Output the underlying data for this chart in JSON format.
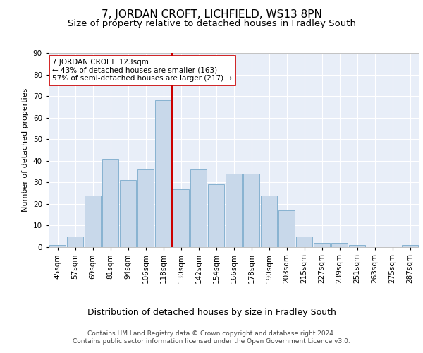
{
  "title": "7, JORDAN CROFT, LICHFIELD, WS13 8PN",
  "subtitle": "Size of property relative to detached houses in Fradley South",
  "xlabel": "Distribution of detached houses by size in Fradley South",
  "ylabel": "Number of detached properties",
  "bar_color": "#c8d8ea",
  "bar_edge_color": "#7aaacb",
  "bg_color": "#e8eef8",
  "grid_color": "#ffffff",
  "categories": [
    "45sqm",
    "57sqm",
    "69sqm",
    "81sqm",
    "94sqm",
    "106sqm",
    "118sqm",
    "130sqm",
    "142sqm",
    "154sqm",
    "166sqm",
    "178sqm",
    "190sqm",
    "203sqm",
    "215sqm",
    "227sqm",
    "239sqm",
    "251sqm",
    "263sqm",
    "275sqm",
    "287sqm"
  ],
  "values": [
    1,
    5,
    24,
    41,
    31,
    36,
    68,
    27,
    36,
    29,
    34,
    34,
    24,
    17,
    5,
    2,
    2,
    1,
    0,
    0,
    1
  ],
  "ylim": [
    0,
    90
  ],
  "yticks": [
    0,
    10,
    20,
    30,
    40,
    50,
    60,
    70,
    80,
    90
  ],
  "vline_pos": 6.5,
  "vline_color": "#cc0000",
  "annotation_text": "7 JORDAN CROFT: 123sqm\n← 43% of detached houses are smaller (163)\n57% of semi-detached houses are larger (217) →",
  "annotation_box_facecolor": "#ffffff",
  "annotation_box_edgecolor": "#cc0000",
  "footer_text": "Contains HM Land Registry data © Crown copyright and database right 2024.\nContains public sector information licensed under the Open Government Licence v3.0.",
  "title_fontsize": 11,
  "subtitle_fontsize": 9.5,
  "xlabel_fontsize": 9,
  "ylabel_fontsize": 8,
  "tick_fontsize": 7.5,
  "annotation_fontsize": 7.5,
  "footer_fontsize": 6.5
}
